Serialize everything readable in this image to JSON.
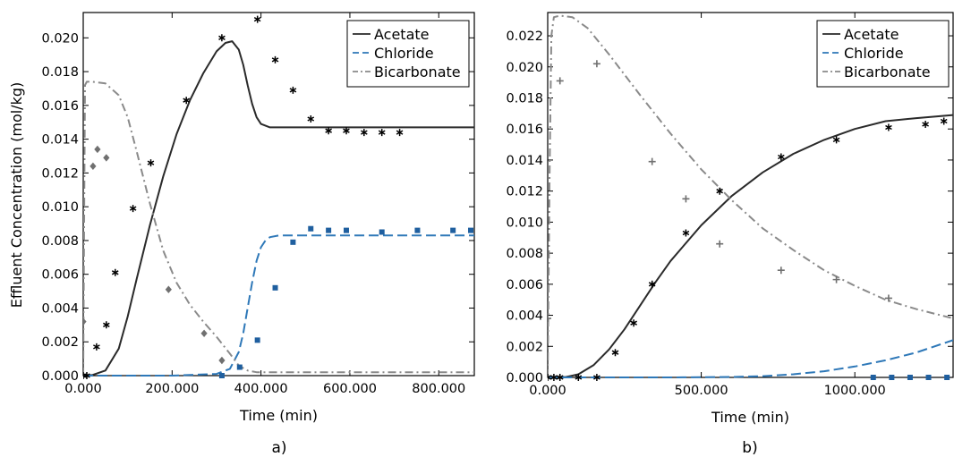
{
  "chart_data": [
    {
      "type": "line",
      "panel_label": "a)",
      "xlabel": "Time (min)",
      "ylabel": "Effluent Concentration (mol/kg)",
      "xlim": [
        0,
        880
      ],
      "ylim": [
        0,
        0.0215
      ],
      "xticks": [
        0,
        200,
        400,
        600,
        800
      ],
      "xtick_labels": [
        "0.000",
        "200.000",
        "400.000",
        "600.000",
        "800.000"
      ],
      "yticks": [
        0,
        0.002,
        0.004,
        0.006,
        0.008,
        0.01,
        0.012,
        0.014,
        0.016,
        0.018,
        0.02
      ],
      "ytick_labels": [
        "0.000",
        "0.002",
        "0.004",
        "0.006",
        "0.008",
        "0.010",
        "0.012",
        "0.014",
        "0.016",
        "0.018",
        "0.020"
      ],
      "legend_position": "top-right",
      "series": [
        {
          "name": "Acetate",
          "style": "solid",
          "color": "#2a2a2a",
          "x": [
            0,
            20,
            50,
            80,
            100,
            120,
            150,
            180,
            210,
            240,
            270,
            300,
            320,
            335,
            350,
            360,
            370,
            380,
            390,
            400,
            420,
            450,
            500,
            600,
            700,
            880
          ],
          "y": [
            0,
            3e-05,
            0.0003,
            0.0016,
            0.0035,
            0.0057,
            0.0089,
            0.0118,
            0.0143,
            0.0163,
            0.0179,
            0.0192,
            0.0197,
            0.0198,
            0.0193,
            0.0184,
            0.0172,
            0.0161,
            0.0153,
            0.0149,
            0.0147,
            0.0147,
            0.0147,
            0.0147,
            0.0147,
            0.0147
          ]
        },
        {
          "name": "Chloride",
          "style": "dashed",
          "color": "#2e78b8",
          "x": [
            0,
            100,
            200,
            300,
            330,
            350,
            360,
            370,
            380,
            390,
            400,
            410,
            420,
            440,
            470,
            500,
            600,
            700,
            880
          ],
          "y": [
            0,
            0,
            0,
            0.0001,
            0.0004,
            0.0014,
            0.0025,
            0.004,
            0.0055,
            0.0068,
            0.0076,
            0.008,
            0.0082,
            0.0083,
            0.0083,
            0.0083,
            0.0083,
            0.0083,
            0.0083
          ]
        },
        {
          "name": "Bicarbonate",
          "style": "dashdot",
          "color": "#8a8a8a",
          "x": [
            0,
            2,
            4,
            8,
            20,
            50,
            80,
            100,
            120,
            150,
            180,
            210,
            240,
            270,
            300,
            330,
            350,
            370,
            390,
            420,
            500,
            600,
            700,
            880
          ],
          "y": [
            0,
            0.009,
            0.0172,
            0.0174,
            0.0174,
            0.0173,
            0.0166,
            0.0153,
            0.0133,
            0.0102,
            0.0074,
            0.0055,
            0.0042,
            0.0032,
            0.0023,
            0.0013,
            0.0006,
            0.0003,
            0.0002,
            0.0002,
            0.0002,
            0.0002,
            0.0002,
            0.0002
          ]
        }
      ],
      "points": [
        {
          "series": "Acetate",
          "marker": "asterisk",
          "color": "#000000",
          "x": [
            0,
            8,
            30,
            52,
            72,
            112,
            152,
            232,
            312,
            392,
            432,
            472,
            512,
            552,
            592,
            632,
            672,
            712
          ],
          "y": [
            0,
            0,
            0.0017,
            0.003,
            0.0061,
            0.0099,
            0.0126,
            0.0163,
            0.02,
            0.0211,
            0.0187,
            0.0169,
            0.0152,
            0.0145,
            0.0145,
            0.0144,
            0.0144,
            0.0144
          ]
        },
        {
          "series": "Chloride",
          "marker": "square",
          "color": "#1f5f9f",
          "x": [
            312,
            352,
            392,
            432,
            472,
            512,
            552,
            592,
            672,
            752,
            832,
            872
          ],
          "y": [
            0,
            0.0005,
            0.0021,
            0.0052,
            0.0079,
            0.0087,
            0.0086,
            0.0086,
            0.0085,
            0.0086,
            0.0086,
            0.0086
          ]
        },
        {
          "series": "Bicarbonate",
          "marker": "diamond",
          "color": "#707070",
          "x": [
            0,
            22,
            32,
            52,
            192,
            272,
            312
          ],
          "y": [
            0.0032,
            0.0124,
            0.0134,
            0.0129,
            0.0051,
            0.0025,
            0.0009
          ]
        }
      ]
    },
    {
      "type": "line",
      "panel_label": "b)",
      "xlabel": "Time (min)",
      "ylabel": "",
      "xlim": [
        0,
        1320
      ],
      "ylim": [
        0,
        0.0235
      ],
      "xticks": [
        0,
        500,
        1000
      ],
      "xtick_labels": [
        "0.000",
        "500.000",
        "1000.000"
      ],
      "yticks": [
        0,
        0.002,
        0.004,
        0.006,
        0.008,
        0.01,
        0.012,
        0.014,
        0.016,
        0.018,
        0.02,
        0.022
      ],
      "ytick_labels": [
        "0.000",
        "0.002",
        "0.004",
        "0.006",
        "0.008",
        "0.010",
        "0.012",
        "0.014",
        "0.016",
        "0.018",
        "0.020",
        "0.022"
      ],
      "legend_position": "top-right",
      "series": [
        {
          "name": "Acetate",
          "style": "solid",
          "color": "#2a2a2a",
          "x": [
            0,
            60,
            100,
            150,
            200,
            250,
            300,
            350,
            400,
            500,
            600,
            700,
            800,
            900,
            1000,
            1100,
            1200,
            1320
          ],
          "y": [
            0,
            3e-05,
            0.0002,
            0.0008,
            0.0018,
            0.0031,
            0.0046,
            0.0061,
            0.0075,
            0.0098,
            0.0117,
            0.0132,
            0.0144,
            0.0153,
            0.016,
            0.0165,
            0.0167,
            0.0169
          ]
        },
        {
          "name": "Chloride",
          "style": "dashed",
          "color": "#2e78b8",
          "x": [
            0,
            200,
            400,
            600,
            700,
            800,
            900,
            1000,
            1100,
            1200,
            1320
          ],
          "y": [
            0,
            0,
            0,
            3e-05,
            8e-05,
            0.0002,
            0.0004,
            0.0007,
            0.0011,
            0.0016,
            0.0024
          ]
        },
        {
          "name": "Bicarbonate",
          "style": "dashdot",
          "color": "#8a8a8a",
          "x": [
            0,
            6,
            12,
            20,
            40,
            80,
            130,
            200,
            300,
            400,
            500,
            600,
            700,
            800,
            900,
            1000,
            1100,
            1200,
            1320
          ],
          "y": [
            0,
            0.013,
            0.022,
            0.0232,
            0.0233,
            0.0232,
            0.0225,
            0.0208,
            0.0182,
            0.0157,
            0.0134,
            0.0114,
            0.0096,
            0.0082,
            0.0069,
            0.0059,
            0.005,
            0.0044,
            0.0038
          ]
        }
      ],
      "points": [
        {
          "series": "Acetate",
          "marker": "asterisk",
          "color": "#000000",
          "x": [
            0,
            20,
            40,
            100,
            160,
            220,
            280,
            340,
            450,
            560,
            760,
            940,
            1110,
            1230,
            1290
          ],
          "y": [
            0,
            0,
            0,
            0,
            0,
            0.0016,
            0.0035,
            0.006,
            0.0093,
            0.012,
            0.0142,
            0.0153,
            0.0161,
            0.0163,
            0.0165
          ]
        },
        {
          "series": "Chloride",
          "marker": "square",
          "color": "#1f5f9f",
          "x": [
            1060,
            1120,
            1180,
            1240,
            1300
          ],
          "y": [
            0,
            0,
            0,
            0,
            0
          ]
        },
        {
          "series": "Bicarbonate",
          "marker": "plus",
          "color": "#707070",
          "x": [
            0,
            40,
            160,
            340,
            450,
            560,
            760,
            940,
            1110
          ],
          "y": [
            0.0038,
            0.0191,
            0.0202,
            0.0139,
            0.0115,
            0.0086,
            0.0069,
            0.0063,
            0.0051
          ]
        }
      ]
    }
  ]
}
